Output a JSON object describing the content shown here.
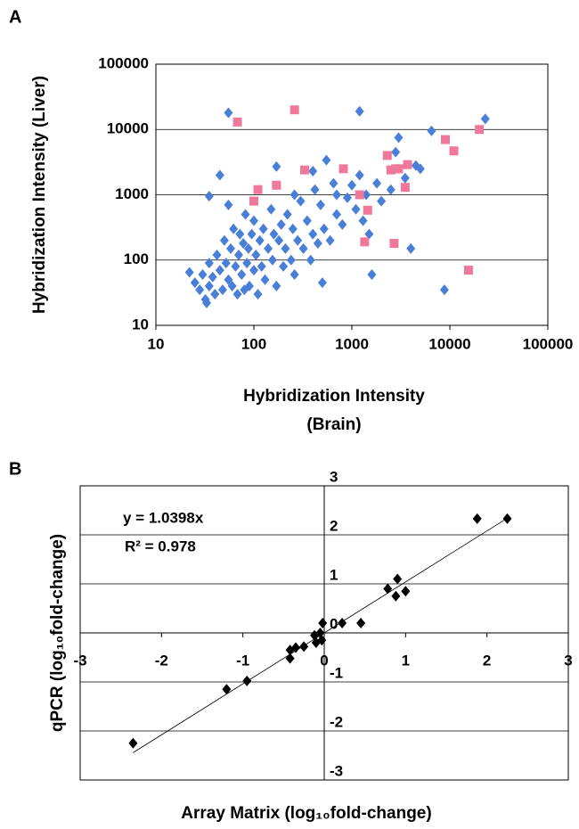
{
  "chart_data": [
    {
      "type": "scatter",
      "panel": "A",
      "xscale": "log",
      "yscale": "log",
      "x_label": [
        "Hybridization Intensity",
        "(Brain)"
      ],
      "y_label": "Hybridization Intensity (Liver)",
      "xlim": [
        10,
        100000
      ],
      "ylim": [
        10,
        100000
      ],
      "xticks": [
        10,
        100,
        1000,
        10000,
        100000
      ],
      "yticks": [
        10,
        100,
        1000,
        10000,
        100000
      ],
      "grid": true,
      "axes_cross": false,
      "series": [
        {
          "marker": "diamond",
          "color": "#4a7fd8",
          "x": [
            22,
            25,
            28,
            30,
            32,
            33,
            35,
            35,
            38,
            40,
            42,
            45,
            45,
            48,
            50,
            52,
            55,
            55,
            58,
            60,
            62,
            65,
            68,
            70,
            72,
            75,
            78,
            80,
            82,
            85,
            88,
            90,
            95,
            100,
            100,
            105,
            110,
            115,
            120,
            125,
            130,
            140,
            150,
            155,
            160,
            170,
            180,
            190,
            200,
            210,
            220,
            240,
            250,
            260,
            280,
            300,
            320,
            350,
            380,
            400,
            420,
            450,
            480,
            500,
            520,
            550,
            600,
            650,
            700,
            800,
            900,
            1000,
            1100,
            1200,
            1400,
            1500,
            1600,
            1800,
            2000,
            2500,
            2800,
            3000,
            3500,
            4000,
            4500,
            5000,
            6500,
            8800,
            23000,
            55,
            1200,
            35,
            170,
            400,
            260,
            1300,
            700
          ],
          "values": [
            65,
            45,
            35,
            60,
            25,
            22,
            90,
            40,
            55,
            30,
            120,
            70,
            2000,
            35,
            200,
            90,
            50,
            700,
            150,
            40,
            300,
            80,
            30,
            120,
            250,
            60,
            180,
            35,
            500,
            90,
            150,
            40,
            250,
            70,
            400,
            120,
            30,
            200,
            80,
            300,
            50,
            150,
            600,
            100,
            250,
            40,
            200,
            350,
            80,
            150,
            500,
            100,
            300,
            60,
            200,
            800,
            150,
            400,
            100,
            250,
            1200,
            180,
            700,
            45,
            300,
            3400,
            200,
            1500,
            500,
            350,
            900,
            1400,
            600,
            2000,
            1000,
            250,
            60,
            1500,
            800,
            1200,
            4500,
            7500,
            1800,
            150,
            2800,
            2500,
            9500,
            35,
            14500,
            18000,
            19000,
            950,
            2700,
            2300,
            1000,
            400,
            1000
          ]
        },
        {
          "marker": "square",
          "color": "#f0789a",
          "x": [
            68,
            260,
            100,
            110,
            170,
            330,
            820,
            1200,
            1350,
            1450,
            2300,
            2500,
            2700,
            2800,
            3000,
            3500,
            3700,
            9000,
            11000,
            15500,
            20000
          ],
          "values": [
            13000,
            20000,
            800,
            1200,
            1400,
            2400,
            2500,
            1000,
            190,
            580,
            4000,
            2400,
            180,
            2500,
            2500,
            1300,
            2900,
            7000,
            4700,
            70,
            10000
          ]
        }
      ]
    },
    {
      "type": "scatter",
      "panel": "B",
      "xscale": "linear",
      "yscale": "linear",
      "x_label": [
        "Array Matrix (log₁₀fold-change)"
      ],
      "y_label": "qPCR (log₁₀fold-change)",
      "xlim": [
        -3,
        3
      ],
      "ylim": [
        -3,
        3
      ],
      "xticks": [
        -3,
        -2,
        -1,
        0,
        1,
        2,
        3
      ],
      "yticks": [
        -3,
        -2,
        -1,
        0,
        1,
        2,
        3
      ],
      "grid": true,
      "axes_cross": true,
      "annotations": [
        "y = 1.0398x",
        "R² = 0.978"
      ],
      "trendline": {
        "slope": 1.0398,
        "color": "#000000"
      },
      "series": [
        {
          "marker": "diamond",
          "color": "#000000",
          "x": [
            -2.35,
            -1.2,
            -0.95,
            -0.42,
            -0.42,
            -0.35,
            -0.25,
            -0.12,
            -0.1,
            -0.05,
            -0.03,
            -0.02,
            0.22,
            0.45,
            0.78,
            0.88,
            0.9,
            1.0,
            1.88,
            2.25
          ],
          "values": [
            -2.25,
            -1.15,
            -0.98,
            -0.52,
            -0.35,
            -0.3,
            -0.28,
            -0.05,
            -0.2,
            0,
            -0.15,
            0.2,
            0.2,
            0.2,
            0.9,
            0.75,
            1.1,
            0.85,
            2.33,
            2.33
          ]
        }
      ]
    }
  ]
}
